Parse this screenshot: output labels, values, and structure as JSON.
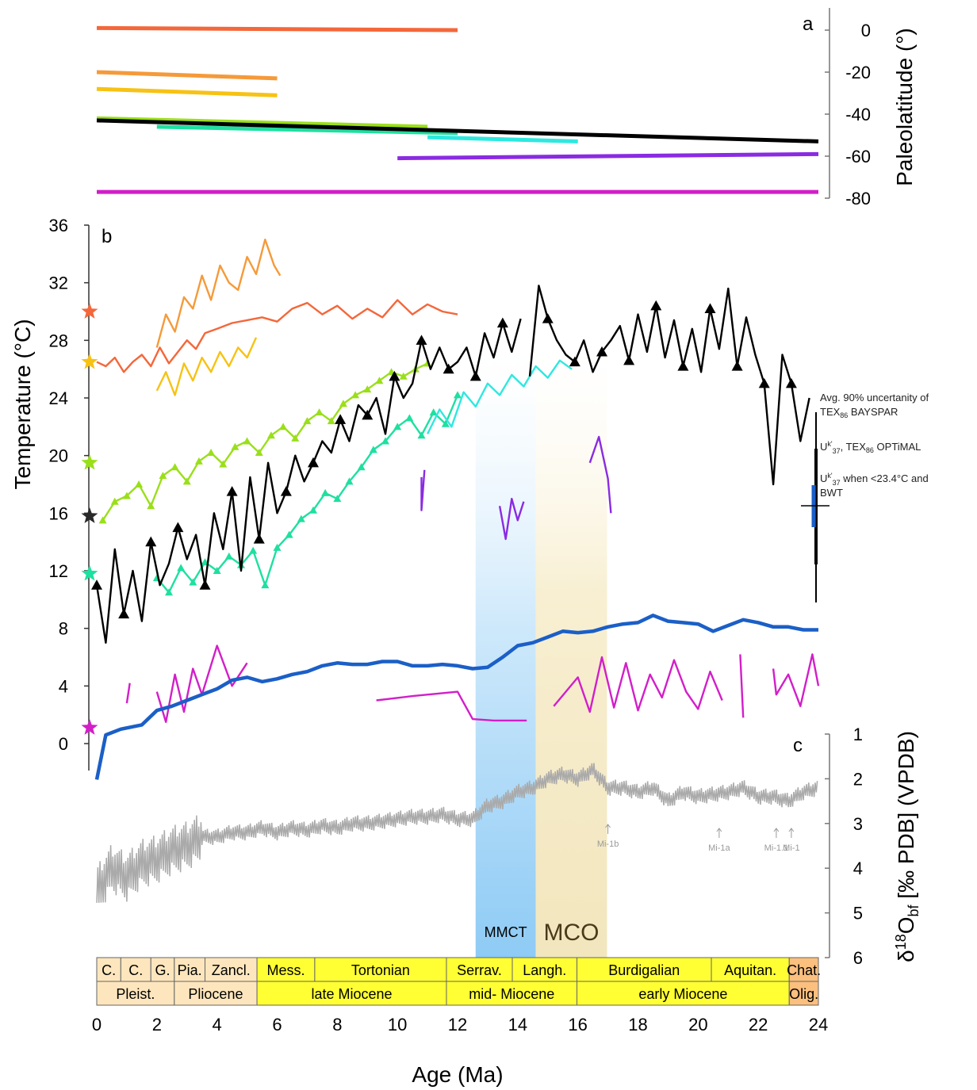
{
  "chart_data": [
    {
      "panel": "a",
      "type": "line",
      "ylabel": "Paleolatitude (°)",
      "ylim": [
        -80,
        5
      ],
      "yticks": [
        0,
        -20,
        -40,
        -60,
        -80
      ],
      "series": [
        {
          "color": "#f4673a",
          "x": [
            0,
            12
          ],
          "y": [
            1,
            0
          ]
        },
        {
          "color": "#f59a3a",
          "x": [
            0,
            6
          ],
          "y": [
            -20,
            -23
          ]
        },
        {
          "color": "#f7c214",
          "x": [
            0,
            6
          ],
          "y": [
            -28,
            -31
          ]
        },
        {
          "color": "#9adf1a",
          "x": [
            0,
            11
          ],
          "y": [
            -42,
            -46
          ]
        },
        {
          "color": "#1ee0a0",
          "x": [
            2,
            12
          ],
          "y": [
            -46,
            -49
          ]
        },
        {
          "color": "#2ee8df",
          "x": [
            11,
            16
          ],
          "y": [
            -51,
            -53
          ]
        },
        {
          "color": "#8a2be2",
          "x": [
            10,
            24
          ],
          "y": [
            -61,
            -59
          ]
        },
        {
          "color": "#d21fc8",
          "x": [
            0,
            24
          ],
          "y": [
            -77,
            -77
          ]
        },
        {
          "color": "#000000",
          "x": [
            0,
            24
          ],
          "y": [
            -43,
            -53
          ]
        }
      ]
    },
    {
      "panel": "b",
      "type": "line",
      "ylabel": "Temperature (°C)",
      "ylim": [
        -2,
        36
      ],
      "yticks": [
        0,
        4,
        8,
        12,
        16,
        20,
        24,
        28,
        32,
        36
      ],
      "stars": [
        {
          "y": 30,
          "color": "#f4673a"
        },
        {
          "y": 26.5,
          "color": "#f7c214"
        },
        {
          "y": 19.5,
          "color": "#9adf1a"
        },
        {
          "y": 15.8,
          "color": "#2a2a2a"
        },
        {
          "y": 11.8,
          "color": "#1ee0a0"
        },
        {
          "y": 1.1,
          "color": "#d21fc8"
        }
      ],
      "series": [
        {
          "color": "#f4673a",
          "x": [
            0,
            0.3,
            0.6,
            0.9,
            1.2,
            1.5,
            1.8,
            2.1,
            2.4,
            2.7,
            3,
            3.3,
            3.6,
            4,
            4.5,
            5,
            5.5,
            6,
            6.5,
            7,
            7.5,
            8,
            8.5,
            9,
            9.5,
            10,
            10.5,
            11,
            11.5,
            12
          ],
          "y": [
            26.5,
            26.2,
            26.8,
            25.8,
            26.5,
            27,
            26.2,
            27.5,
            26.4,
            27.2,
            28,
            27.4,
            28.5,
            28.8,
            29.2,
            29.4,
            29.6,
            29.3,
            30.2,
            30.6,
            29.8,
            30.4,
            29.5,
            30.2,
            29.6,
            30.8,
            29.8,
            30.5,
            30,
            29.8
          ]
        },
        {
          "color": "#f59a3a",
          "x": [
            2,
            2.3,
            2.6,
            2.9,
            3.2,
            3.5,
            3.8,
            4.1,
            4.4,
            4.7,
            5,
            5.3,
            5.6,
            5.9,
            6.1
          ],
          "y": [
            27.5,
            29.8,
            28.6,
            31,
            30.2,
            32.5,
            30.8,
            33.2,
            32,
            31.5,
            33.8,
            32.6,
            35,
            33.2,
            32.5
          ]
        },
        {
          "color": "#f7c214",
          "x": [
            2,
            2.3,
            2.6,
            2.9,
            3.2,
            3.5,
            3.8,
            4.1,
            4.4,
            4.7,
            5,
            5.3
          ],
          "y": [
            24.5,
            25.8,
            24.2,
            26.4,
            25.2,
            26.8,
            25.8,
            27.2,
            26.2,
            27.5,
            26.8,
            28.2
          ]
        },
        {
          "color": "#9adf1a",
          "x": [
            0.2,
            0.6,
            1,
            1.4,
            1.8,
            2.2,
            2.6,
            3,
            3.4,
            3.8,
            4.2,
            4.6,
            5,
            5.4,
            5.8,
            6.2,
            6.6,
            7,
            7.4,
            7.8,
            8.2,
            8.6,
            9,
            9.4,
            9.8,
            10.2,
            10.6,
            11
          ],
          "y": [
            15.5,
            16.8,
            17.2,
            18,
            16.5,
            18.6,
            19.2,
            18.2,
            19.6,
            20.2,
            19.4,
            20.6,
            21,
            20.2,
            21.4,
            22,
            21.2,
            22.4,
            23,
            22.4,
            23.6,
            24.2,
            24.6,
            25.2,
            25.8,
            25.5,
            26,
            26.4
          ]
        },
        {
          "color": "#1ee0a0",
          "x": [
            2,
            2.4,
            2.8,
            3.2,
            3.6,
            4,
            4.4,
            4.8,
            5.2,
            5.6,
            6,
            6.4,
            6.8,
            7.2,
            7.6,
            8,
            8.4,
            8.8,
            9.2,
            9.6,
            10,
            10.4,
            10.8,
            11.2,
            11.6,
            12
          ],
          "y": [
            11.5,
            10.5,
            12.2,
            11.2,
            12.6,
            12,
            13,
            12.4,
            13.4,
            11,
            13.6,
            14.5,
            15.6,
            16.2,
            17.4,
            17,
            18.2,
            19.2,
            20.4,
            21,
            22,
            22.6,
            21.4,
            23,
            22.2,
            24.2
          ]
        },
        {
          "color": "#2ee8df",
          "x": [
            11,
            11.4,
            11.8,
            12.2,
            12.6,
            13,
            13.4,
            13.8,
            14.2,
            14.6,
            15,
            15.4,
            15.8
          ],
          "y": [
            21.5,
            23.2,
            22,
            24.4,
            23.4,
            25,
            24.2,
            25.6,
            24.8,
            26.2,
            25.4,
            26.6,
            26
          ]
        },
        {
          "color": "#8a2be2",
          "x": [
            10.8,
            10.8,
            10.9,
            null,
            13.4,
            13.6,
            13.8,
            14,
            14.2,
            null,
            16.4,
            16.7,
            17,
            17.1
          ],
          "y": [
            18.5,
            16.2,
            19,
            null,
            16.5,
            14.2,
            17,
            15.5,
            16.8,
            null,
            19.5,
            21.3,
            18.4,
            16
          ]
        },
        {
          "color": "#d21fc8",
          "x": [
            1,
            1.1,
            null,
            2,
            2.3,
            2.6,
            2.9,
            3.2,
            3.5,
            4,
            4.5,
            5,
            null,
            9.3,
            10.5,
            12,
            12.5,
            13.2,
            14.3,
            null,
            15.2,
            15.6,
            16,
            16.4,
            16.8,
            17.2,
            17.6,
            18,
            18.4,
            18.8,
            19.2,
            19.6,
            20,
            20.4,
            20.8,
            null,
            21.4,
            21.5,
            null,
            22.5,
            22.6,
            23,
            23.4,
            23.8,
            24
          ],
          "y": [
            2.8,
            4.2,
            null,
            3.6,
            1.5,
            4.8,
            2.2,
            5.2,
            3.4,
            6.8,
            4,
            5.6,
            null,
            3,
            3.3,
            3.6,
            1.7,
            1.6,
            1.6,
            null,
            2.6,
            3.6,
            4.6,
            2.2,
            6,
            2.5,
            5.6,
            2.3,
            4.8,
            3.2,
            5.8,
            3.6,
            2.4,
            5,
            3,
            null,
            6.2,
            1.8,
            null,
            5.2,
            3.4,
            4.8,
            2.6,
            6.2,
            4
          ]
        },
        {
          "color": "#000000",
          "x": [
            0,
            0.3,
            0.6,
            0.9,
            1.2,
            1.5,
            1.8,
            2.1,
            2.4,
            2.7,
            3,
            3.3,
            3.6,
            3.9,
            4.2,
            4.5,
            4.8,
            5.1,
            5.4,
            5.7,
            6,
            6.3,
            6.6,
            6.9,
            7.2,
            7.5,
            7.8,
            8.1,
            8.4,
            8.7,
            9,
            9.3,
            9.6,
            9.9,
            10.2,
            10.5,
            10.8,
            11.1,
            11.4,
            11.7,
            12,
            12.3,
            12.6,
            12.9,
            13.2,
            13.5,
            13.8,
            14.1,
            null,
            14.4,
            14.7,
            15,
            15.3,
            15.6,
            15.9,
            16.2,
            16.5,
            16.8,
            17.1,
            17.4,
            17.7,
            18,
            18.3,
            18.6,
            18.9,
            19.2,
            19.5,
            19.8,
            20.1,
            20.4,
            20.7,
            21,
            21.3,
            21.6,
            21.9,
            22.2,
            22.5,
            22.8,
            23.1,
            23.4,
            23.7
          ],
          "y": [
            11,
            7,
            13.5,
            9,
            12,
            8.5,
            14,
            11,
            12.5,
            15,
            12.8,
            14.5,
            11,
            16,
            13.5,
            17.5,
            12,
            18.5,
            14.2,
            19.5,
            16,
            17.5,
            20,
            18.2,
            19.5,
            21,
            20.2,
            22.5,
            21,
            23.5,
            22.8,
            24,
            21.5,
            25.5,
            24,
            25,
            28,
            26,
            27.5,
            26,
            26.5,
            27.5,
            25.5,
            28.5,
            26.8,
            29.2,
            27.2,
            29.5,
            null,
            25.5,
            31.8,
            29.5,
            28,
            27,
            26.5,
            28,
            25.8,
            27.2,
            28,
            29,
            26.6,
            29.8,
            27.2,
            30.4,
            26.8,
            29.4,
            26.2,
            28.8,
            25.8,
            30.2,
            27.4,
            31.6,
            26.2,
            29.6,
            27,
            25,
            18,
            27,
            25,
            21,
            24
          ]
        },
        {
          "color": "#1b5fc7",
          "x": [
            0,
            0.3,
            0.8,
            1.5,
            2,
            2.5,
            3,
            3.5,
            4,
            4.5,
            5,
            5.5,
            6,
            6.5,
            7,
            7.5,
            8,
            8.5,
            9,
            9.5,
            10,
            10.5,
            11,
            11.5,
            12,
            12.5,
            13,
            13.5,
            14,
            14.5,
            15,
            15.5,
            16,
            16.5,
            17,
            17.5,
            18,
            18.5,
            19,
            19.5,
            20,
            20.5,
            21,
            21.5,
            22,
            22.5,
            23,
            23.5,
            24
          ],
          "y": [
            -2.5,
            0.6,
            1,
            1.3,
            2.3,
            2.6,
            3,
            3.4,
            3.8,
            4.4,
            4.6,
            4.3,
            4.5,
            4.8,
            5,
            5.4,
            5.6,
            5.5,
            5.5,
            5.7,
            5.7,
            5.4,
            5.4,
            5.5,
            5.4,
            5.2,
            5.3,
            6,
            6.8,
            7,
            7.4,
            7.8,
            7.7,
            7.8,
            8.1,
            8.3,
            8.4,
            8.9,
            8.5,
            8.4,
            8.3,
            7.8,
            8.2,
            8.6,
            8.4,
            8.1,
            8.1,
            7.9,
            7.9
          ]
        }
      ]
    },
    {
      "panel": "c",
      "type": "line",
      "ylabel": "δ18Obf [‰ PDB] (VPDB)",
      "ylim": [
        1,
        6
      ],
      "yticks": [
        1,
        2,
        3,
        4,
        5,
        6
      ],
      "series": [
        {
          "color": "#aaaaaa",
          "x": [
            0,
            0.5,
            1,
            1.5,
            2,
            2.5,
            3,
            3.5,
            4,
            4.5,
            5,
            5.5,
            6,
            6.5,
            7,
            7.5,
            8,
            8.5,
            9,
            9.5,
            10,
            10.5,
            11,
            11.5,
            12,
            12.5,
            13,
            13.5,
            14,
            14.5,
            15,
            15.5,
            16,
            16.5,
            17,
            17.5,
            18,
            18.5,
            19,
            19.5,
            20,
            20.5,
            21,
            21.5,
            22,
            22.5,
            23,
            23.5,
            24
          ],
          "y": [
            4.5,
            4,
            4.2,
            3.9,
            3.8,
            3.6,
            3.5,
            3.3,
            3.3,
            3.2,
            3.2,
            3.1,
            3.2,
            3.1,
            3.15,
            3.05,
            3.1,
            3,
            3,
            2.95,
            2.9,
            2.85,
            2.85,
            2.8,
            2.9,
            2.9,
            2.6,
            2.5,
            2.3,
            2.2,
            2,
            1.9,
            2,
            1.8,
            2.2,
            2.2,
            2.3,
            2.2,
            2.5,
            2.3,
            2.4,
            2.35,
            2.3,
            2.2,
            2.4,
            2.4,
            2.5,
            2.3,
            2.2
          ]
        }
      ],
      "events": [
        {
          "label": "Mi-1b",
          "x": 17
        },
        {
          "label": "Mi-1a",
          "x": 20.7
        },
        {
          "label": "Mi-1.1",
          "x": 22.6
        },
        {
          "label": "Mi-1",
          "x": 23.1
        }
      ]
    }
  ],
  "xaxis": {
    "label": "Age (Ma)",
    "ticks": [
      0,
      2,
      4,
      6,
      8,
      10,
      12,
      14,
      16,
      18,
      20,
      22,
      24
    ],
    "range": [
      0,
      24
    ]
  },
  "panel_letters": {
    "a": "a",
    "b": "b",
    "c": "c"
  },
  "bands": [
    {
      "label": "MMCT",
      "x0": 12.6,
      "x1": 14.6,
      "color": "#8ecbf5"
    },
    {
      "label": "MCO",
      "x0": 14.6,
      "x1": 16.97,
      "color": "#f2e6bd"
    }
  ],
  "uncertainty_notes": {
    "line1a": "Avg. 90% uncertanity of",
    "line1b": "TEX",
    "line1b_sub": "86",
    "line1c": " BAYSPAR",
    "line2a": "U",
    "line2_sup": "k'",
    "line2_sub": "37",
    "line2b": ", TEX",
    "line2_sub2": "86",
    "line2c": " OPTiMAL",
    "line3a": "U",
    "line3_sup": "k'",
    "line3_sub": "37",
    "line3b": " when <23.4°C and",
    "line3c": "BWT"
  },
  "timescale": {
    "stages": [
      {
        "label": "C.",
        "x0": 0,
        "x1": 0.8,
        "color": "#fde6bd"
      },
      {
        "label": "C.",
        "x0": 0.8,
        "x1": 1.8,
        "color": "#fde6bd"
      },
      {
        "label": "G.",
        "x0": 1.8,
        "x1": 2.58,
        "color": "#fde6bd"
      },
      {
        "label": "Pia.",
        "x0": 2.58,
        "x1": 3.6,
        "color": "#fde6bd"
      },
      {
        "label": "Zancl.",
        "x0": 3.6,
        "x1": 5.33,
        "color": "#fde6bd"
      },
      {
        "label": "Mess.",
        "x0": 5.33,
        "x1": 7.25,
        "color": "#ffff33"
      },
      {
        "label": "Tortonian",
        "x0": 7.25,
        "x1": 11.63,
        "color": "#ffff33"
      },
      {
        "label": "Serrav.",
        "x0": 11.63,
        "x1": 13.82,
        "color": "#ffff33"
      },
      {
        "label": "Langh.",
        "x0": 13.82,
        "x1": 15.97,
        "color": "#ffff33"
      },
      {
        "label": "Burdigalian",
        "x0": 15.97,
        "x1": 20.44,
        "color": "#ffff33"
      },
      {
        "label": "Aquitan.",
        "x0": 20.44,
        "x1": 23.03,
        "color": "#ffff33"
      },
      {
        "label": "Chat.",
        "x0": 23.03,
        "x1": 24,
        "color": "#fbbf7e"
      }
    ],
    "epochs": [
      {
        "label": "Pleist.",
        "x0": 0,
        "x1": 2.58,
        "color": "#fde6bd"
      },
      {
        "label": "Pliocene",
        "x0": 2.58,
        "x1": 5.33,
        "color": "#fde6bd"
      },
      {
        "label": "late Miocene",
        "x0": 5.33,
        "x1": 11.63,
        "color": "#ffff33"
      },
      {
        "label": "mid- Miocene",
        "x0": 11.63,
        "x1": 15.97,
        "color": "#ffff33"
      },
      {
        "label": "early Miocene",
        "x0": 15.97,
        "x1": 23.03,
        "color": "#ffff33"
      },
      {
        "label": "Olig.",
        "x0": 23.03,
        "x1": 24,
        "color": "#fbbf7e"
      }
    ]
  }
}
